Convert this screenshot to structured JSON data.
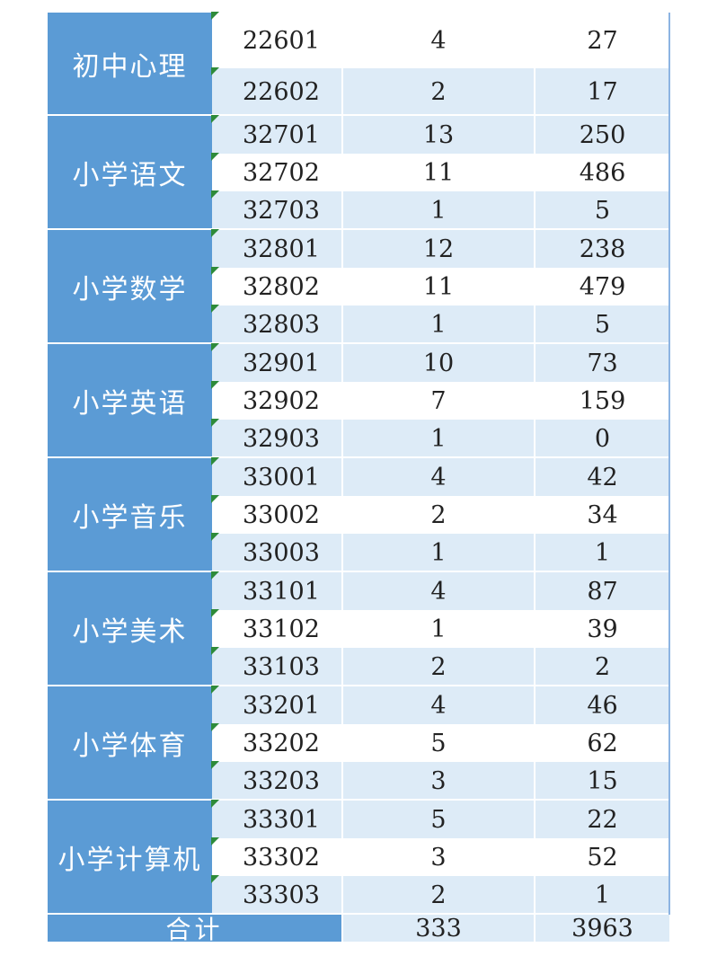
{
  "groups": [
    {
      "subject": "初中心理",
      "rows": [
        {
          "code": "22601",
          "positions": "4",
          "applicants": "27"
        },
        {
          "code": "22602",
          "positions": "2",
          "applicants": "17"
        }
      ]
    },
    {
      "subject": "小学语文",
      "rows": [
        {
          "code": "32701",
          "positions": "13",
          "applicants": "250"
        },
        {
          "code": "32702",
          "positions": "11",
          "applicants": "486"
        },
        {
          "code": "32703",
          "positions": "1",
          "applicants": "5"
        }
      ]
    },
    {
      "subject": "小学数学",
      "rows": [
        {
          "code": "32801",
          "positions": "12",
          "applicants": "238"
        },
        {
          "code": "32802",
          "positions": "11",
          "applicants": "479"
        },
        {
          "code": "32803",
          "positions": "1",
          "applicants": "5"
        }
      ]
    },
    {
      "subject": "小学英语",
      "rows": [
        {
          "code": "32901",
          "positions": "10",
          "applicants": "73"
        },
        {
          "code": "32902",
          "positions": "7",
          "applicants": "159"
        },
        {
          "code": "32903",
          "positions": "1",
          "applicants": "0"
        }
      ]
    },
    {
      "subject": "小学音乐",
      "rows": [
        {
          "code": "33001",
          "positions": "4",
          "applicants": "42"
        },
        {
          "code": "33002",
          "positions": "2",
          "applicants": "34"
        },
        {
          "code": "33003",
          "positions": "1",
          "applicants": "1"
        }
      ]
    },
    {
      "subject": "小学美术",
      "rows": [
        {
          "code": "33101",
          "positions": "4",
          "applicants": "87"
        },
        {
          "code": "33102",
          "positions": "1",
          "applicants": "39"
        },
        {
          "code": "33103",
          "positions": "2",
          "applicants": "2"
        }
      ]
    },
    {
      "subject": "小学体育",
      "rows": [
        {
          "code": "33201",
          "positions": "4",
          "applicants": "46"
        },
        {
          "code": "33202",
          "positions": "5",
          "applicants": "62"
        },
        {
          "code": "33203",
          "positions": "3",
          "applicants": "15"
        }
      ]
    },
    {
      "subject": "小学计算机",
      "rows": [
        {
          "code": "33301",
          "positions": "5",
          "applicants": "22"
        },
        {
          "code": "33302",
          "positions": "3",
          "applicants": "52"
        },
        {
          "code": "33303",
          "positions": "2",
          "applicants": "1"
        }
      ]
    }
  ],
  "total": {
    "label": "合计",
    "positions": "333",
    "applicants": "3963"
  },
  "colors": {
    "header_blue": "#5b9bd5",
    "row_light_blue": "#ddebf7",
    "corner_marker_green": "#2e8b3a"
  }
}
